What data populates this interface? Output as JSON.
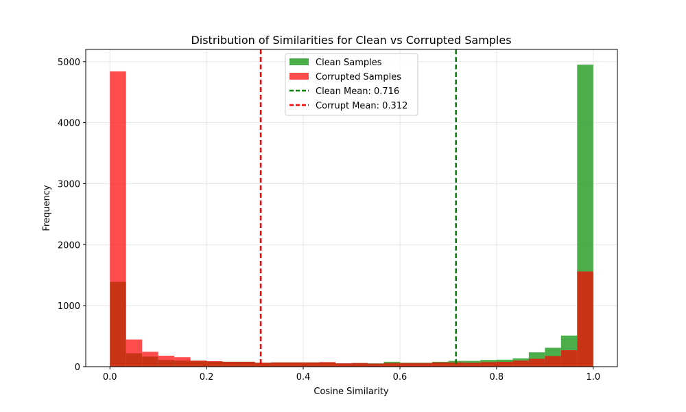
{
  "chart_data": {
    "type": "bar",
    "title": "Distribution of Similarities for Clean vs Corrupted Samples",
    "xlabel": "Cosine Similarity",
    "ylabel": "Frequency",
    "xlim": [
      -0.05,
      1.05
    ],
    "ylim": [
      0,
      5200
    ],
    "xticks": [
      0.0,
      0.2,
      0.4,
      0.6,
      0.8,
      1.0
    ],
    "xtick_labels": [
      "0.0",
      "0.2",
      "0.4",
      "0.6",
      "0.8",
      "1.0"
    ],
    "yticks": [
      0,
      1000,
      2000,
      3000,
      4000,
      5000
    ],
    "ytick_labels": [
      "0",
      "1000",
      "2000",
      "3000",
      "4000",
      "5000"
    ],
    "grid": true,
    "legend_position": "top-center",
    "bins": {
      "start": 0.0,
      "end": 1.0,
      "count": 30
    },
    "series": [
      {
        "name": "Clean Samples",
        "color": "#2ca02c",
        "values": [
          1390,
          220,
          165,
          110,
          100,
          95,
          85,
          80,
          80,
          65,
          70,
          70,
          70,
          70,
          55,
          60,
          55,
          80,
          65,
          65,
          80,
          95,
          95,
          110,
          115,
          135,
          235,
          310,
          510,
          4950
        ]
      },
      {
        "name": "Corrupted Samples",
        "color": "#ff0000",
        "values": [
          4840,
          445,
          245,
          180,
          155,
          100,
          90,
          80,
          80,
          65,
          70,
          70,
          70,
          75,
          55,
          60,
          50,
          60,
          60,
          60,
          70,
          70,
          65,
          75,
          80,
          100,
          130,
          175,
          270,
          1560
        ]
      }
    ],
    "reference_lines": [
      {
        "name": "Clean Mean: 0.716",
        "x": 0.716,
        "color": "#008000",
        "style": "dashed"
      },
      {
        "name": "Corrupt Mean: 0.312",
        "x": 0.312,
        "color": "#ff0000",
        "style": "dashed"
      }
    ]
  }
}
